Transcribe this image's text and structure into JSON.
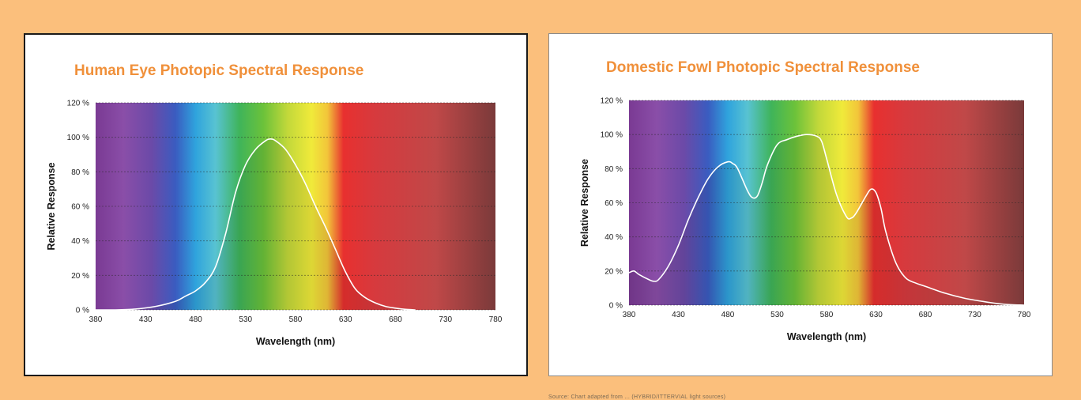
{
  "chart_data": [
    {
      "type": "line",
      "title": "Human Eye Photopic Spectral Response",
      "xlabel": "Wavelength (nm)",
      "ylabel": "Relative Response",
      "xlim": [
        380,
        780
      ],
      "ylim": [
        0,
        120
      ],
      "x_ticks": [
        "380",
        "430",
        "480",
        "530",
        "580",
        "630",
        "680",
        "730",
        "780"
      ],
      "y_ticks": [
        "0 %",
        "20 %",
        "40 %",
        "60 %",
        "80 %",
        "100 %",
        "120 %"
      ],
      "grid": "horizontal dashed",
      "background": "visible spectrum gradient",
      "series": [
        {
          "line_color": "#ffffff",
          "x": [
            380,
            400,
            420,
            440,
            460,
            470,
            480,
            490,
            500,
            510,
            520,
            530,
            540,
            550,
            555,
            560,
            570,
            580,
            590,
            600,
            610,
            620,
            630,
            640,
            650,
            660,
            670,
            680,
            690,
            700
          ],
          "y": [
            0,
            0,
            0.5,
            2,
            5,
            8,
            11,
            16,
            25,
            44,
            68,
            84,
            93,
            98,
            99,
            98,
            93,
            84,
            73,
            60,
            48,
            35,
            22,
            12,
            7,
            4,
            2,
            1,
            0.3,
            0
          ]
        }
      ]
    },
    {
      "type": "line",
      "title": "Domestic Fowl Photopic Spectral Response",
      "xlabel": "Wavelength (nm)",
      "ylabel": "Relative Response",
      "xlim": [
        380,
        780
      ],
      "ylim": [
        0,
        120
      ],
      "x_ticks": [
        "380",
        "430",
        "480",
        "530",
        "580",
        "630",
        "680",
        "730",
        "780"
      ],
      "y_ticks": [
        "0 %",
        "20 %",
        "40 %",
        "60 %",
        "80 %",
        "100 %",
        "120 %"
      ],
      "grid": "horizontal dashed",
      "background": "visible spectrum gradient",
      "series": [
        {
          "line_color": "#ffffff",
          "x": [
            380,
            385,
            390,
            400,
            405,
            410,
            420,
            430,
            440,
            450,
            460,
            470,
            480,
            485,
            490,
            500,
            505,
            510,
            515,
            520,
            530,
            540,
            550,
            560,
            570,
            575,
            580,
            590,
            600,
            605,
            610,
            620,
            625,
            630,
            635,
            640,
            650,
            660,
            670,
            680,
            700,
            720,
            740,
            760,
            780
          ],
          "y": [
            19,
            20,
            18,
            15,
            14,
            15,
            23,
            35,
            50,
            63,
            74,
            81,
            84,
            83,
            80,
            67,
            63,
            64,
            72,
            82,
            94,
            97,
            99,
            100,
            99,
            96,
            86,
            65,
            52,
            51,
            54,
            64,
            68,
            66,
            57,
            43,
            25,
            16,
            13,
            11,
            7,
            4,
            2,
            0.5,
            0
          ]
        }
      ]
    }
  ],
  "footnote": "Source: Chart adapted from ... (HYBRID/ITTERVIAL light sources)"
}
